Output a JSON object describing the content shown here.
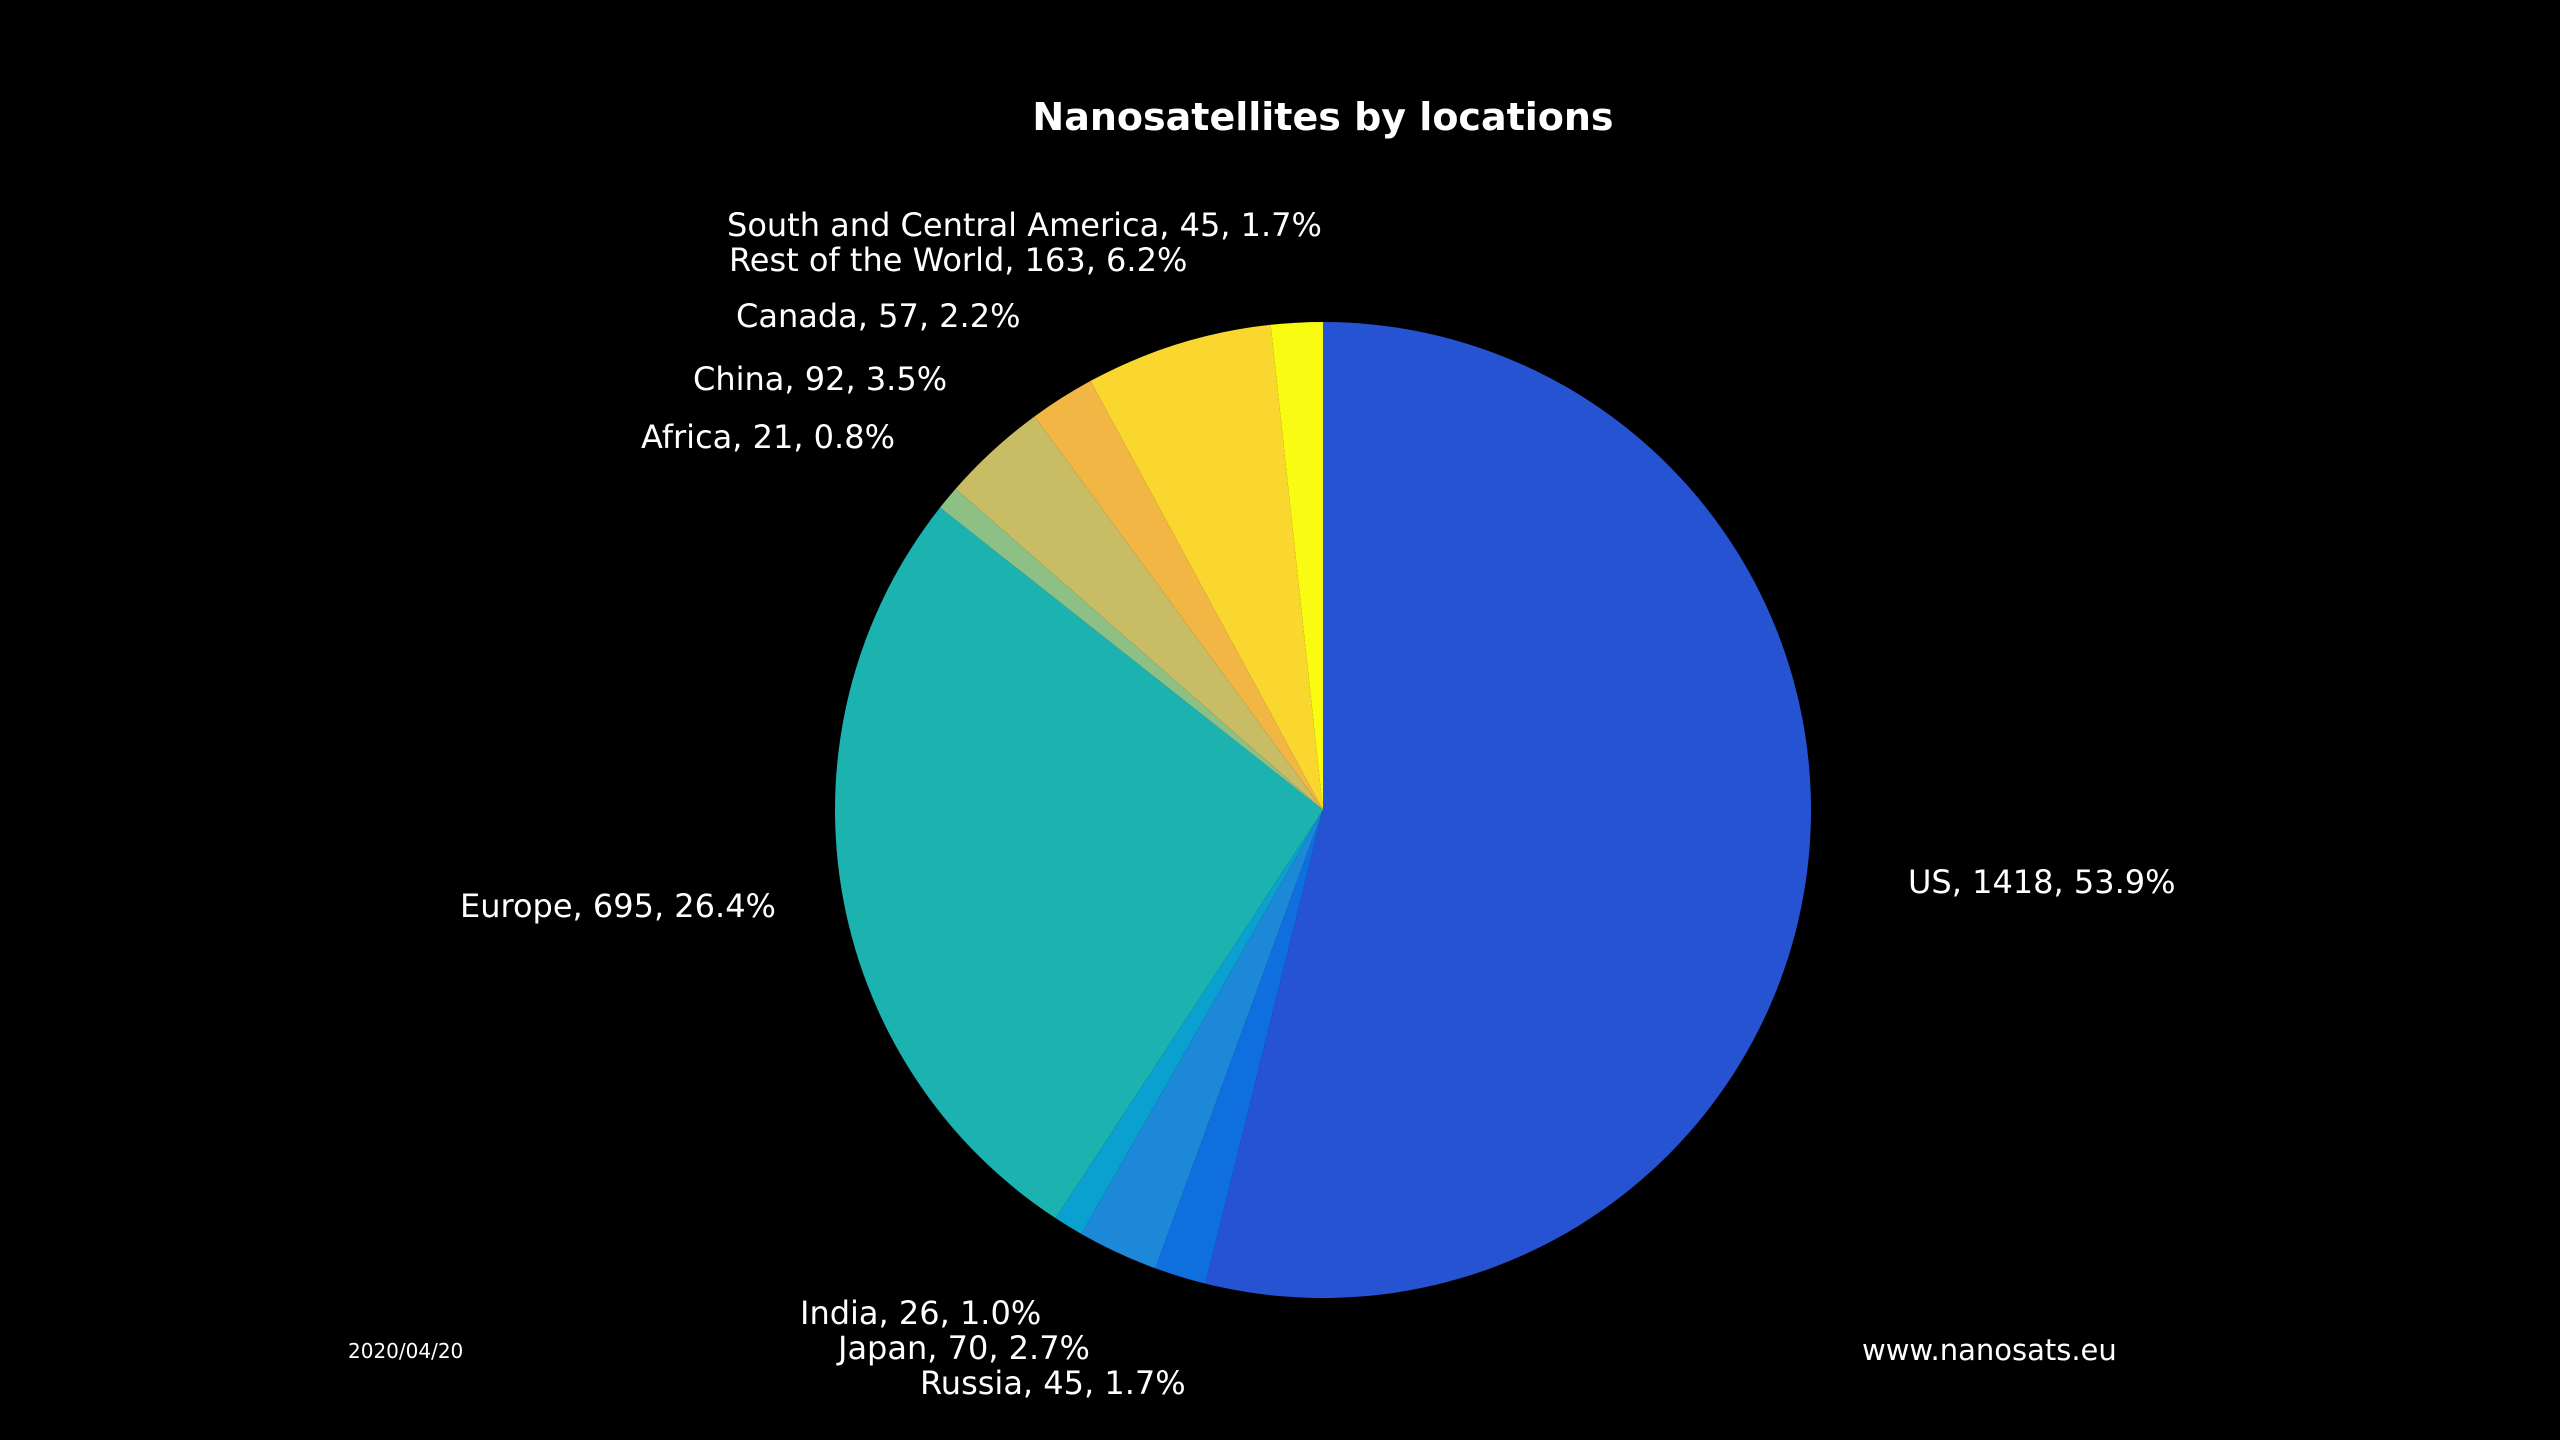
{
  "chart_data": {
    "type": "pie",
    "title": "Nanosatellites by locations",
    "start_angle_deg": 0,
    "direction": "clockwise",
    "slices": [
      {
        "label": "US, 1418, 53.9%",
        "name": "US",
        "value": 1418,
        "percent": 53.9,
        "color": "#2653D2"
      },
      {
        "label": "Russia, 45, 1.7%",
        "name": "Russia",
        "value": 45,
        "percent": 1.7,
        "color": "#0F6FDF"
      },
      {
        "label": "Japan, 70, 2.7%",
        "name": "Japan",
        "value": 70,
        "percent": 2.7,
        "color": "#1D87D8"
      },
      {
        "label": "India, 26, 1.0%",
        "name": "India",
        "value": 26,
        "percent": 1.0,
        "color": "#0AA0CF"
      },
      {
        "label": "Europe, 695, 26.4%",
        "name": "Europe",
        "value": 695,
        "percent": 26.4,
        "color": "#1BB2B0"
      },
      {
        "label": "Africa, 21, 0.8%",
        "name": "Africa",
        "value": 21,
        "percent": 0.8,
        "color": "#8CC084"
      },
      {
        "label": "China, 92, 3.5%",
        "name": "China",
        "value": 92,
        "percent": 3.5,
        "color": "#C8BD64"
      },
      {
        "label": "Canada, 57, 2.2%",
        "name": "Canada",
        "value": 57,
        "percent": 2.2,
        "color": "#F2B645"
      },
      {
        "label": "Rest of the World, 163, 6.2%",
        "name": "Rest of the World",
        "value": 163,
        "percent": 6.2,
        "color": "#F9D72E"
      },
      {
        "label": "South and Central America, 45, 1.7%",
        "name": "South and Central America",
        "value": 45,
        "percent": 1.7,
        "color": "#FAFB13"
      }
    ]
  },
  "footer": {
    "date": "2020/04/20",
    "website": "www.nanosats.eu"
  }
}
